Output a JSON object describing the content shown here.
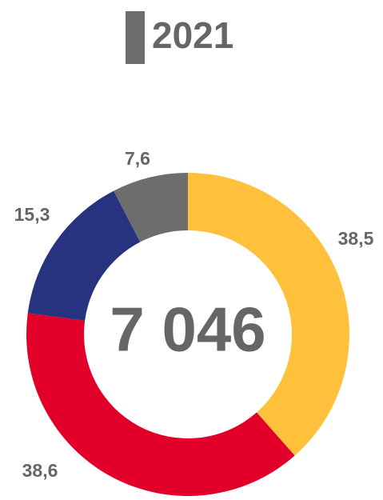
{
  "chart_data": {
    "type": "donut",
    "title": "2021",
    "title_marker_color": "#6d6d6d",
    "center_label": "7 046",
    "values": [
      38.5,
      38.6,
      15.3,
      7.6
    ],
    "value_labels": [
      "38,5",
      "38,6",
      "15,3",
      "7,6"
    ],
    "colors": [
      "#ffc13b",
      "#e2002a",
      "#27337f",
      "#6d6d6d"
    ]
  }
}
